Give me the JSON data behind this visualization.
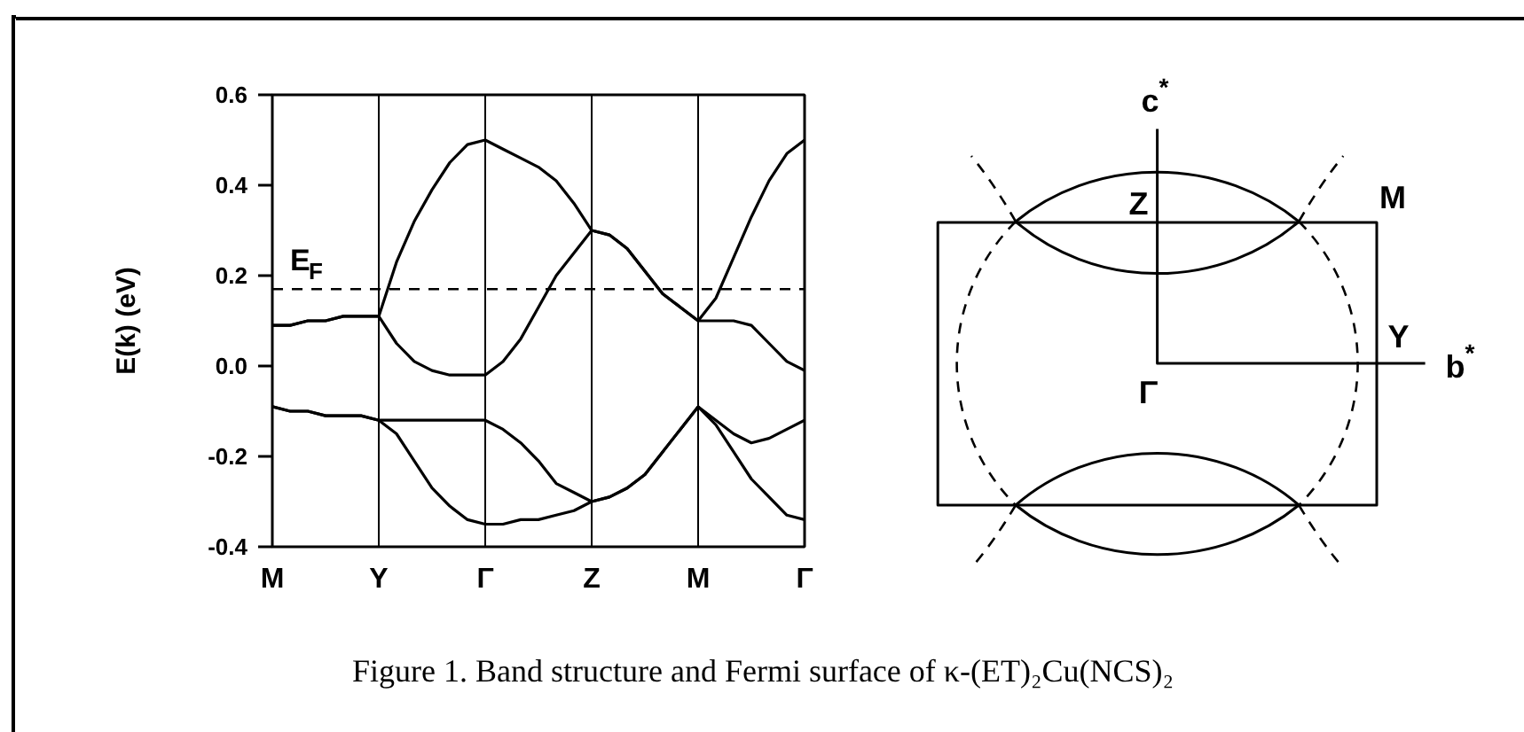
{
  "chart_data": [
    {
      "type": "line",
      "ylabel": "E(k) (eV)",
      "categories": [
        "M",
        null,
        null,
        null,
        null,
        null,
        "Y",
        null,
        null,
        null,
        null,
        null,
        "Γ",
        null,
        null,
        null,
        null,
        null,
        "Z",
        null,
        null,
        null,
        null,
        null,
        "M",
        null,
        null,
        null,
        null,
        null,
        "Γ"
      ],
      "ylim": [
        -0.4,
        0.6
      ],
      "yticks": [
        -0.4,
        -0.2,
        {
          "value": 0,
          "label": "0.0"
        },
        0.2,
        0.4,
        0.6
      ],
      "grid": "x",
      "ref_lines": [
        {
          "axis": "y",
          "value": 0.17,
          "label": "E$_{F}$",
          "line_style": "dashed",
          "color": "#000000"
        }
      ],
      "series": [
        {
          "color": "#000000",
          "values": [
            0.09,
            0.09,
            0.1,
            0.1,
            0.11,
            0.11,
            0.11,
            0.23,
            0.32,
            0.39,
            0.45,
            0.49,
            0.5,
            0.48,
            0.46,
            0.44,
            0.41,
            0.36,
            0.3,
            0.29,
            0.26,
            0.21,
            0.16,
            0.13,
            0.1,
            0.15,
            0.24,
            0.33,
            0.41,
            0.47,
            0.5
          ]
        },
        {
          "color": "#000000",
          "values": [
            0.09,
            0.09,
            0.1,
            0.1,
            0.11,
            0.11,
            0.11,
            0.05,
            0.01,
            -0.01,
            -0.02,
            -0.02,
            -0.02,
            0.01,
            0.06,
            0.13,
            0.2,
            0.25,
            0.3,
            0.29,
            0.26,
            0.21,
            0.16,
            0.13,
            0.1,
            0.1,
            0.1,
            0.09,
            0.05,
            0.01,
            -0.01
          ]
        },
        {
          "color": "#000000",
          "values": [
            -0.09,
            -0.1,
            -0.1,
            -0.11,
            -0.11,
            -0.11,
            -0.12,
            -0.12,
            -0.12,
            -0.12,
            -0.12,
            -0.12,
            -0.12,
            -0.14,
            -0.17,
            -0.21,
            -0.26,
            -0.28,
            -0.3,
            -0.29,
            -0.27,
            -0.24,
            -0.19,
            -0.14,
            -0.09,
            -0.12,
            -0.15,
            -0.17,
            -0.16,
            -0.14,
            -0.12
          ]
        },
        {
          "color": "#000000",
          "values": [
            -0.09,
            -0.1,
            -0.1,
            -0.11,
            -0.11,
            -0.11,
            -0.12,
            -0.15,
            -0.21,
            -0.27,
            -0.31,
            -0.34,
            -0.35,
            -0.35,
            -0.34,
            -0.34,
            -0.33,
            -0.32,
            -0.3,
            -0.29,
            -0.27,
            -0.24,
            -0.19,
            -0.14,
            -0.09,
            -0.13,
            -0.19,
            -0.25,
            -0.29,
            -0.33,
            -0.34
          ]
        }
      ],
      "annotations": [
        "Figure 1. Band structure and Fermi surface of κ-(ET)₂Cu(NCS)₂"
      ]
    },
    {
      "type": "other",
      "annotations": [
        "c$^{*}$",
        "Z",
        "M",
        "Y",
        "b$^{*}$",
        "Γ"
      ]
    }
  ]
}
